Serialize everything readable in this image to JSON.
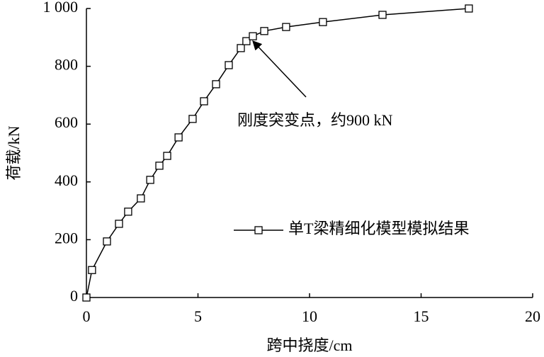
{
  "chart_data": {
    "type": "line",
    "x_label": "跨中挠度/cm",
    "y_label": "荷载/kN",
    "annotation": "刚度突变点，约900 kN",
    "x": [
      0,
      0.25,
      0.92,
      1.46,
      1.87,
      2.44,
      2.86,
      3.27,
      3.62,
      4.13,
      4.76,
      5.27,
      5.81,
      6.38,
      6.92,
      7.17,
      7.46,
      7.97,
      8.95,
      10.6,
      13.27,
      17.14
    ],
    "series": [
      {
        "name": "单T梁精细化模型模拟结果",
        "color": "#000000",
        "values": [
          0,
          95,
          194,
          255,
          297,
          343,
          407,
          456,
          490,
          554,
          618,
          679,
          738,
          804,
          863,
          887,
          904,
          922,
          936,
          953,
          978,
          1000
        ]
      }
    ],
    "xlim": [
      0,
      20
    ],
    "xticks": [
      0,
      5,
      10,
      15,
      20
    ],
    "ylim": [
      0,
      1000
    ],
    "yticks": [
      0,
      200,
      400,
      600,
      800,
      {
        "value": 1000,
        "label": "1 000"
      }
    ],
    "legend": "right",
    "grid": false
  }
}
